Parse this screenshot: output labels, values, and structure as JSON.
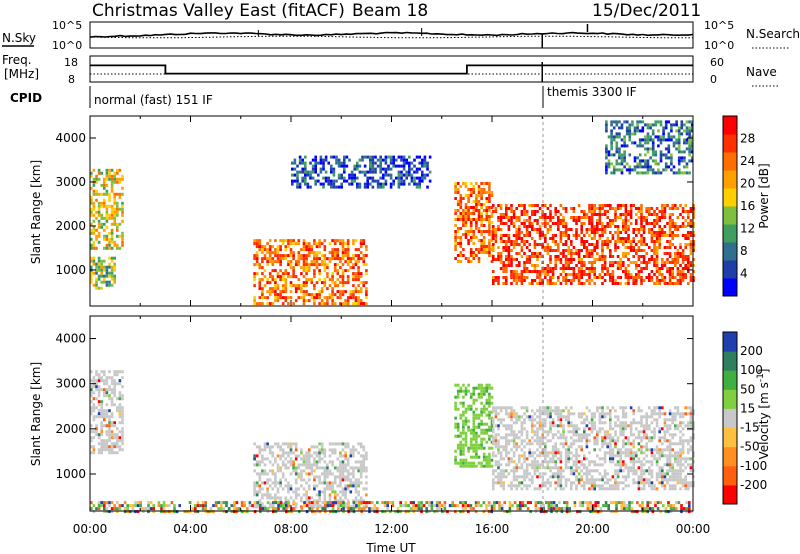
{
  "header": {
    "station_title": "Christmas Valley East (fitACF)",
    "beam_label": "Beam 18",
    "date": "15/Dec/2011"
  },
  "sky_panel": {
    "left_label": "N.Sky",
    "left_ticks": [
      "10^5",
      "10^0"
    ],
    "right_label": "N.Search",
    "right_ticks": [
      "10^5",
      "10^0"
    ]
  },
  "freq_panel": {
    "left_label_line1": "Freq.",
    "left_label_line2": "[MHz]",
    "left_ticks": [
      "18",
      "8"
    ],
    "right_label": "Nave",
    "right_ticks": [
      "60",
      "0"
    ],
    "freq_steps": [
      {
        "t_start": 0.0,
        "t_end": 3.0,
        "freq": 14.3
      },
      {
        "t_start": 3.0,
        "t_end": 15.0,
        "freq": 10.2
      },
      {
        "t_start": 15.0,
        "t_end": 24.0,
        "freq": 14.3
      }
    ]
  },
  "cpid": {
    "label": "CPID",
    "modes": [
      {
        "name": "normal (fast) 151 IF",
        "t_start": 0.0,
        "t_end": 18.0
      },
      {
        "name": "themis 3300 IF",
        "t_start": 18.0,
        "t_end": 24.0
      }
    ]
  },
  "chart_data": [
    {
      "type": "heatmap",
      "quantity": "Power",
      "ylabel": "Slant Range [km]",
      "xlim_hours": [
        0,
        24
      ],
      "ylim_km": [
        180,
        4500
      ],
      "yticks": [
        "1000",
        "2000",
        "3000",
        "4000"
      ],
      "colorbar": {
        "label": "Power [dB]",
        "ticks": [
          "4",
          "8",
          "12",
          "16",
          "20",
          "24",
          "28"
        ],
        "colors": [
          "#0000ff",
          "#1f3fa8",
          "#2f6f8f",
          "#3f9f5f",
          "#7fbf3f",
          "#ffcf00",
          "#ff9f00",
          "#ff6f00",
          "#ff2f00",
          "#ff0000"
        ]
      },
      "echo_regions": [
        {
          "t0": 0.0,
          "t1": 1.3,
          "r0": 1500,
          "r1": 3300,
          "level": 5
        },
        {
          "t0": 0.0,
          "t1": 1.0,
          "r0": 600,
          "r1": 1300,
          "level": 4
        },
        {
          "t0": 6.5,
          "t1": 11.0,
          "r0": 250,
          "r1": 1700,
          "level": 7
        },
        {
          "t0": 8.0,
          "t1": 13.5,
          "r0": 2900,
          "r1": 3600,
          "level": 1
        },
        {
          "t0": 14.5,
          "t1": 16.0,
          "r0": 1200,
          "r1": 3000,
          "level": 7
        },
        {
          "t0": 16.0,
          "t1": 24.0,
          "r0": 700,
          "r1": 2500,
          "level": 8
        },
        {
          "t0": 20.5,
          "t1": 24.0,
          "r0": 3200,
          "r1": 4400,
          "level": 2
        }
      ]
    },
    {
      "type": "heatmap",
      "quantity": "Velocity",
      "ylabel": "Slant Range [km]",
      "xlabel": "Time UT",
      "xlim_hours": [
        0,
        24
      ],
      "ylim_km": [
        180,
        4500
      ],
      "yticks": [
        "1000",
        "2000",
        "3000",
        "4000"
      ],
      "xticks": [
        "00:00",
        "04:00",
        "08:00",
        "12:00",
        "16:00",
        "20:00",
        "00:00"
      ],
      "colorbar": {
        "label": "Velocity [m s^-1]",
        "ticks": [
          "200",
          "100",
          "50",
          "15",
          "-15",
          "-50",
          "-100",
          "-200"
        ],
        "colors": [
          "#1f3faf",
          "#2f7f5f",
          "#3faf3f",
          "#7fcf3f",
          "#c8c8c8",
          "#ffbf3f",
          "#ff8f1f",
          "#ff5f0f",
          "#ff0000"
        ]
      },
      "echo_regions": [
        {
          "t0": 0.0,
          "t1": 1.3,
          "r0": 1500,
          "r1": 3300,
          "level": "gray"
        },
        {
          "t0": 6.5,
          "t1": 11.0,
          "r0": 250,
          "r1": 1700,
          "level": "gray"
        },
        {
          "t0": 14.5,
          "t1": 16.0,
          "r0": 1200,
          "r1": 3000,
          "level": "green"
        },
        {
          "t0": 16.0,
          "t1": 24.0,
          "r0": 700,
          "r1": 2500,
          "level": "gray"
        },
        {
          "t0": 0.0,
          "t1": 24.0,
          "r0": 180,
          "r1": 400,
          "level": "mixed"
        }
      ]
    }
  ]
}
